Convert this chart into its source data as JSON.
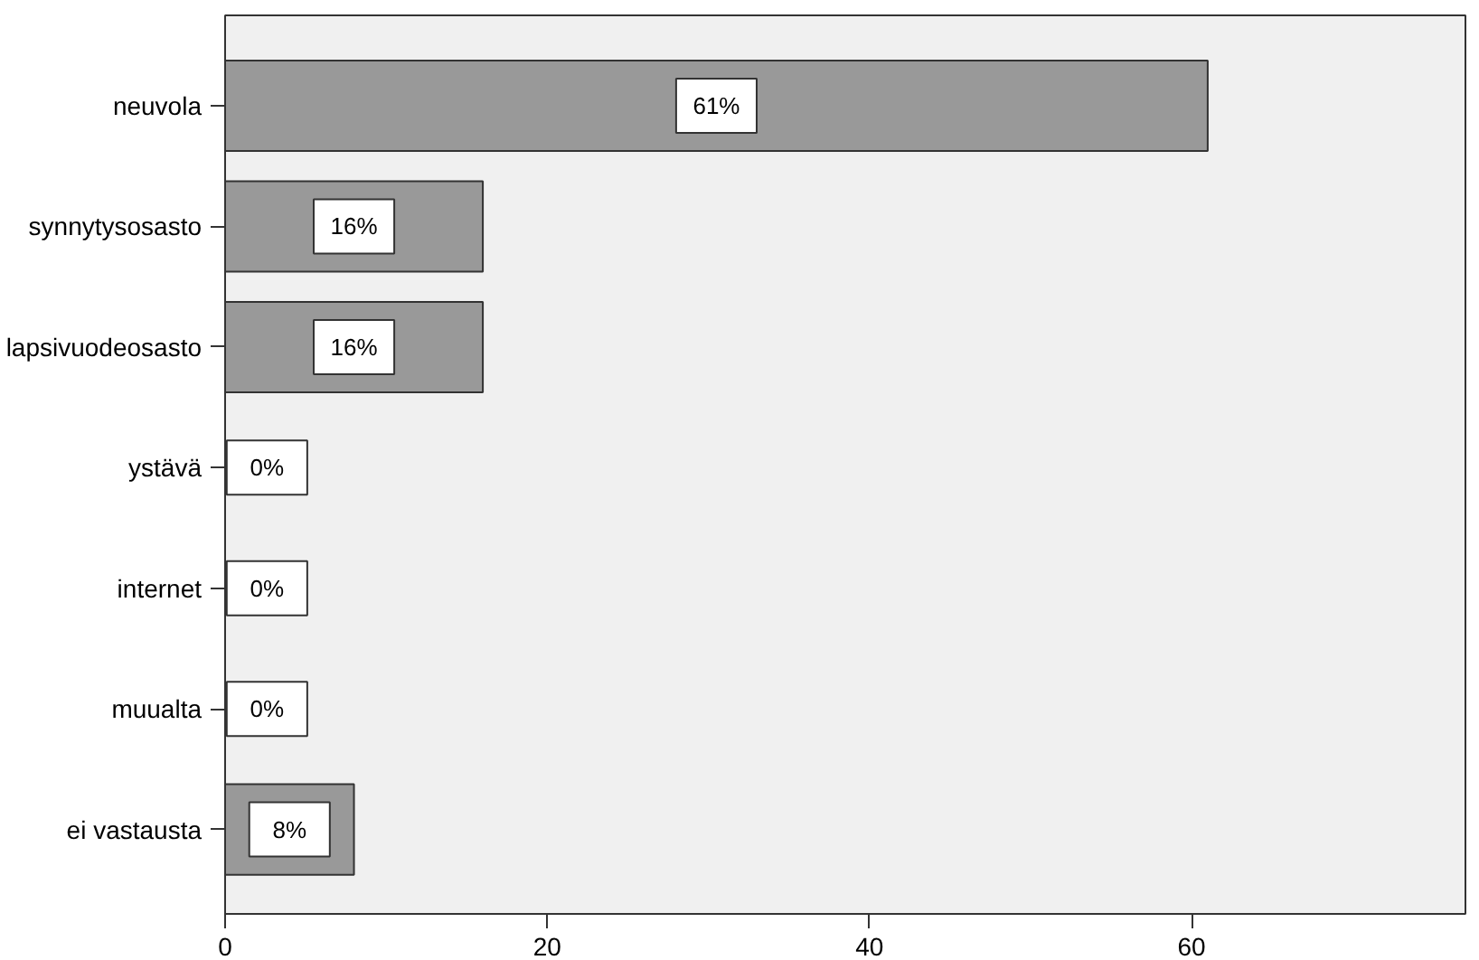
{
  "chart_data": {
    "type": "bar",
    "orientation": "horizontal",
    "categories": [
      "neuvola",
      "synnytysosasto",
      "lapsivuodeosasto",
      "ystävä",
      "internet",
      "muualta",
      "ei vastausta"
    ],
    "values": [
      61,
      16,
      16,
      0,
      0,
      0,
      8
    ],
    "value_labels": [
      "61%",
      "16%",
      "16%",
      "0%",
      "0%",
      "0%",
      "8%"
    ],
    "color": "#999999",
    "xlim": [
      0,
      77
    ],
    "xticks": [
      0,
      20,
      40,
      60
    ]
  }
}
